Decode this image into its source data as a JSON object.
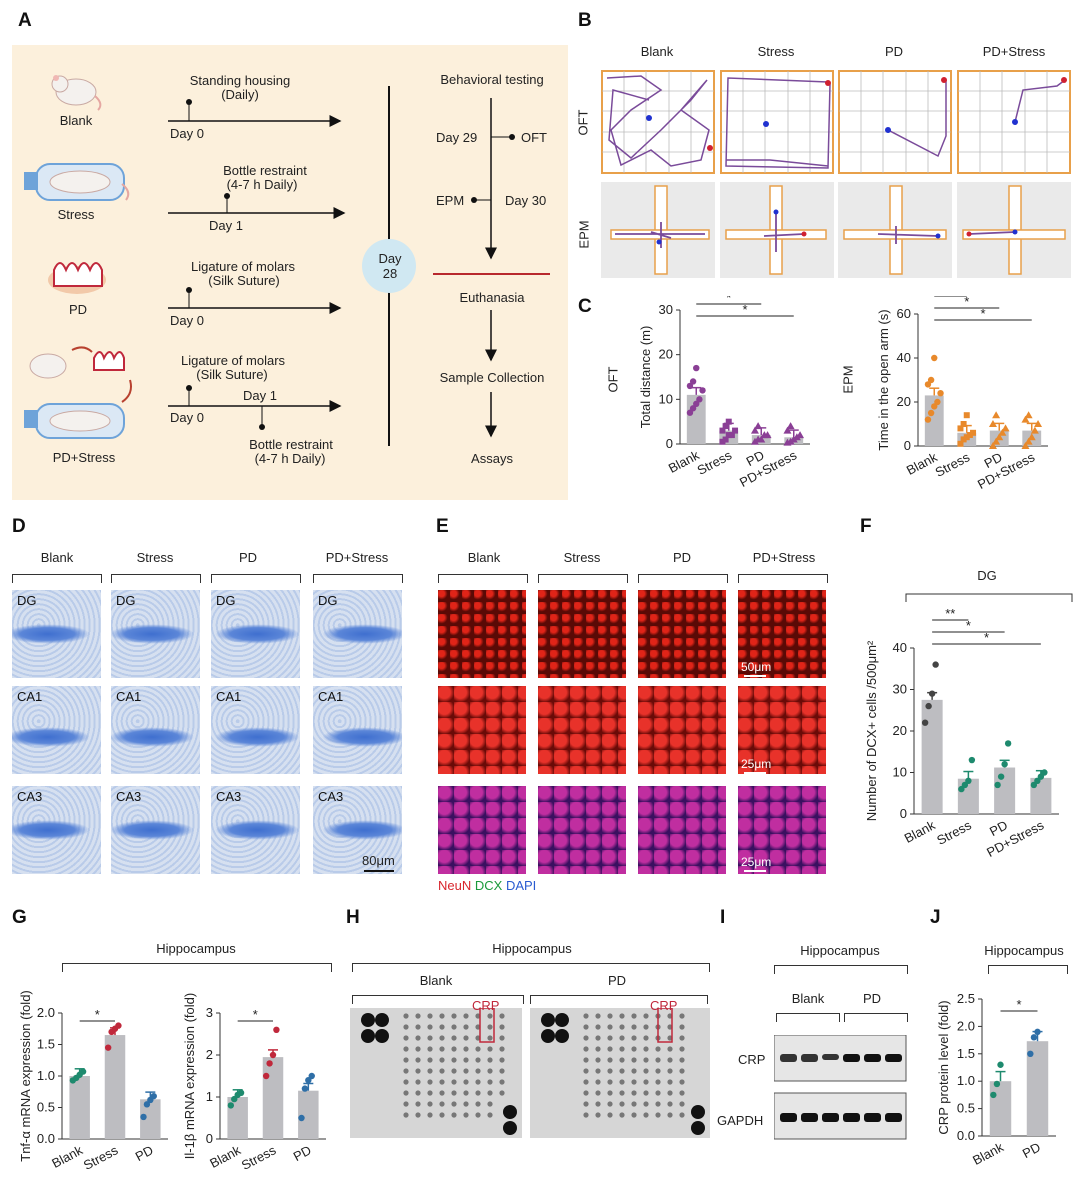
{
  "panels": {
    "A": "A",
    "B": "B",
    "C": "C",
    "D": "D",
    "E": "E",
    "F": "F",
    "G": "G",
    "H": "H",
    "I": "I",
    "J": "J"
  },
  "panelA": {
    "groups": [
      "Blank",
      "Stress",
      "PD",
      "PD+Stress"
    ],
    "blank_line": {
      "label1": "Standing housing",
      "label2": "(Daily)",
      "day": "Day 0"
    },
    "stress_line": {
      "label1": "Bottle restraint",
      "label2": "(4-7 h Daily)",
      "day": "Day 1"
    },
    "pd_line": {
      "label1": "Ligature of molars",
      "label2": "(Silk Suture)",
      "day": "Day 0"
    },
    "pdstress_line": {
      "label1": "Ligature of molars",
      "label2": "(Silk Suture)",
      "day0": "Day 0",
      "day1": "Day 1",
      "label3": "Bottle restraint",
      "label4": "(4-7 h Daily)"
    },
    "day28": {
      "l1": "Day",
      "l2": "28"
    },
    "timeline": {
      "title": "Behavioral testing",
      "day29": "Day 29",
      "oft": "OFT",
      "epm": "EPM",
      "day30": "Day 30",
      "euthanasia": "Euthanasia",
      "sample": "Sample Collection",
      "assays": "Assays"
    }
  },
  "panelB": {
    "columns": [
      "Blank",
      "Stress",
      "PD",
      "PD+Stress"
    ],
    "rows": [
      "OFT",
      "EPM"
    ]
  },
  "panelC": {
    "chart_data": [
      {
        "type": "bar",
        "row_label": "OFT",
        "ylabel": "Total distance (m)",
        "categories": [
          "Blank",
          "Stress",
          "PD",
          "PD+Stress"
        ],
        "values": [
          11,
          3,
          2,
          1.5
        ],
        "ylim": [
          0,
          30
        ],
        "yticks": [
          "0",
          "10",
          "20",
          "30"
        ],
        "points": [
          [
            7,
            8,
            9,
            10,
            12,
            13,
            14,
            17
          ],
          [
            0.5,
            1,
            2,
            2,
            3,
            3,
            4,
            5
          ],
          [
            0.5,
            1,
            1,
            2,
            2,
            3,
            4
          ],
          [
            0.3,
            0.5,
            1,
            1.5,
            2,
            3,
            4
          ]
        ],
        "color": "#8a3f95",
        "significance": [
          "*",
          "*",
          "*"
        ]
      },
      {
        "type": "bar",
        "row_label": "EPM",
        "ylabel": "Time in the open arm (s)",
        "categories": [
          "Blank",
          "Stress",
          "PD",
          "PD+Stress"
        ],
        "values": [
          23,
          6,
          7,
          7
        ],
        "ylim": [
          0,
          60
        ],
        "yticks": [
          "0",
          "20",
          "40",
          "60"
        ],
        "points": [
          [
            12,
            15,
            18,
            20,
            24,
            28,
            30,
            40
          ],
          [
            1,
            3,
            4,
            5,
            6,
            8,
            10,
            14
          ],
          [
            0,
            2,
            4,
            6,
            8,
            10,
            14
          ],
          [
            0,
            2,
            4,
            7,
            10,
            12,
            14
          ]
        ],
        "color": "#e8892b",
        "significance": [
          "*",
          "*",
          "*"
        ]
      }
    ]
  },
  "panelD": {
    "columns": [
      "Blank",
      "Stress",
      "PD",
      "PD+Stress"
    ],
    "rows": [
      "DG",
      "CA1",
      "CA3"
    ],
    "scale": "80μm"
  },
  "panelE": {
    "columns": [
      "Blank",
      "Stress",
      "PD",
      "PD+Stress"
    ],
    "scales": [
      "50μm",
      "25μm",
      "25μm"
    ],
    "legend": {
      "neun": "NeuN",
      "dcx": "DCX",
      "dapi": "DAPI"
    }
  },
  "panelF": {
    "chart_data": {
      "type": "bar",
      "title": "DG",
      "ylabel": "Number of DCX+ cells /500μm²",
      "categories": [
        "Blank",
        "Stress",
        "PD",
        "PD+Stress"
      ],
      "values": [
        27.5,
        8.5,
        11.2,
        8.7
      ],
      "ylim": [
        0,
        40
      ],
      "yticks": [
        "0",
        "10",
        "20",
        "30",
        "40"
      ],
      "points": [
        [
          22,
          26,
          29,
          36
        ],
        [
          6,
          7,
          8,
          13
        ],
        [
          7,
          9,
          12,
          17
        ],
        [
          7,
          8,
          9,
          10
        ]
      ],
      "colors": [
        "#444444",
        "#1e8a6e",
        "#1e8a6e",
        "#1e8a6e"
      ],
      "significance": [
        "**",
        "*",
        "*"
      ]
    }
  },
  "panelG": {
    "title": "Hippocampus",
    "chart_data": [
      {
        "type": "bar",
        "ylabel": "Tnf-α mRNA expression (fold)",
        "categories": [
          "Blank",
          "Stress",
          "PD"
        ],
        "values": [
          1.0,
          1.65,
          0.63
        ],
        "ylim": [
          0,
          2.0
        ],
        "yticks": [
          "0.0",
          "0.5",
          "1.0",
          "1.5",
          "2.0"
        ],
        "points": [
          [
            0.93,
            0.97,
            1.02,
            1.07
          ],
          [
            1.45,
            1.7,
            1.75,
            1.8
          ],
          [
            0.35,
            0.55,
            0.62,
            0.68
          ]
        ],
        "colors": [
          "#1e8a6e",
          "#c0283b",
          "#2f6fa7"
        ],
        "significance": [
          "*"
        ]
      },
      {
        "type": "bar",
        "ylabel": "Il-1β mRNA expression (fold)",
        "categories": [
          "Blank",
          "Stress",
          "PD"
        ],
        "values": [
          1.0,
          1.95,
          1.15
        ],
        "ylim": [
          0,
          3
        ],
        "yticks": [
          "0",
          "1",
          "2",
          "3"
        ],
        "points": [
          [
            0.8,
            0.95,
            1.05,
            1.1
          ],
          [
            1.5,
            1.8,
            2.0,
            2.6
          ],
          [
            0.5,
            1.2,
            1.4,
            1.5
          ]
        ],
        "colors": [
          "#1e8a6e",
          "#c0283b",
          "#2f6fa7"
        ],
        "significance": [
          "*"
        ]
      }
    ]
  },
  "panelH": {
    "title": "Hippocampus",
    "groups": [
      "Blank",
      "PD"
    ],
    "crp": "CRP"
  },
  "panelI": {
    "title": "Hippocampus",
    "groups": [
      "Blank",
      "PD"
    ],
    "rows": [
      "CRP",
      "GAPDH"
    ]
  },
  "panelJ": {
    "title": "Hippocampus",
    "chart_data": {
      "type": "bar",
      "ylabel": "CRP protein level (fold)",
      "categories": [
        "Blank",
        "PD"
      ],
      "values": [
        1.0,
        1.73
      ],
      "ylim": [
        0,
        2.5
      ],
      "yticks": [
        "0.0",
        "0.5",
        "1.0",
        "1.5",
        "2.0",
        "2.5"
      ],
      "points": [
        [
          0.75,
          0.95,
          1.3
        ],
        [
          1.5,
          1.8,
          1.9
        ]
      ],
      "colors": [
        "#1e8a6e",
        "#2f6fa7"
      ],
      "significance": [
        "*"
      ]
    }
  }
}
